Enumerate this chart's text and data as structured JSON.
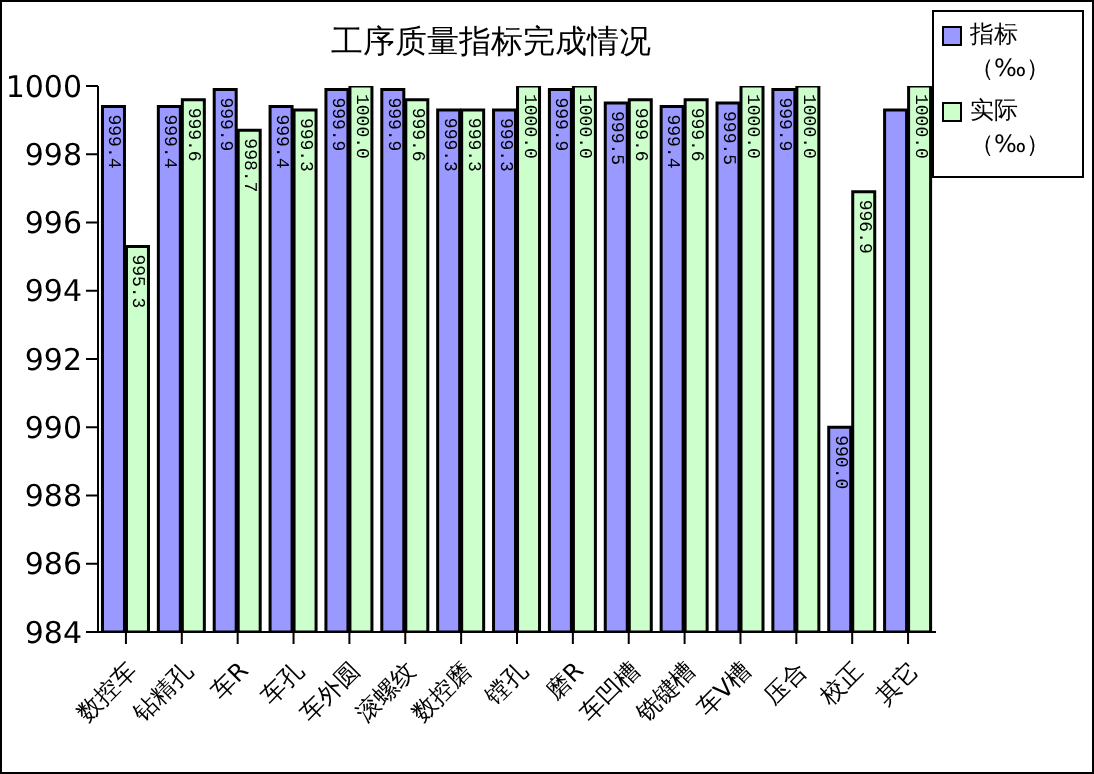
{
  "chart_data": {
    "type": "bar",
    "title": "工序质量指标完成情况",
    "categories": [
      "数控车",
      "钻精孔",
      "车R",
      "车孔",
      "车外圆",
      "滚螺纹",
      "数控磨",
      "镗孔",
      "磨R",
      "车凹槽",
      "铣键槽",
      "车V槽",
      "压合",
      "校正",
      "其它"
    ],
    "series": [
      {
        "name": "指标（‰）",
        "color": "#9999ff",
        "values": [
          999.4,
          999.4,
          999.9,
          999.4,
          999.9,
          999.9,
          999.3,
          999.3,
          999.9,
          999.5,
          999.4,
          999.5,
          999.9,
          990.0,
          999.3
        ],
        "value_labels": [
          "999.4",
          "999.4",
          "999.9",
          "999.4",
          "999.9",
          "999.9",
          "999.3",
          "999.3",
          "999.9",
          "999.5",
          "999.4",
          "999.5",
          "999.9",
          "990.0",
          null
        ]
      },
      {
        "name": "实际（‰）",
        "color": "#ccffcc",
        "values": [
          995.3,
          999.6,
          998.7,
          999.3,
          1000.0,
          999.6,
          999.3,
          1000.0,
          1000.0,
          999.6,
          999.6,
          1000.0,
          1000.0,
          996.9,
          1000.0
        ],
        "value_labels": [
          "995.3",
          "999.6",
          "998.7",
          "999.3",
          "1000.0",
          "999.6",
          "999.3",
          "1000.0",
          "1000.0",
          "999.6",
          "999.6",
          "1000.0",
          "1000.0",
          "996.9",
          "1000.0"
        ]
      }
    ],
    "ylim": [
      984,
      1000
    ],
    "yticks": [
      984,
      986,
      988,
      990,
      992,
      994,
      996,
      998,
      1000
    ],
    "grid": false,
    "legend": "right"
  }
}
